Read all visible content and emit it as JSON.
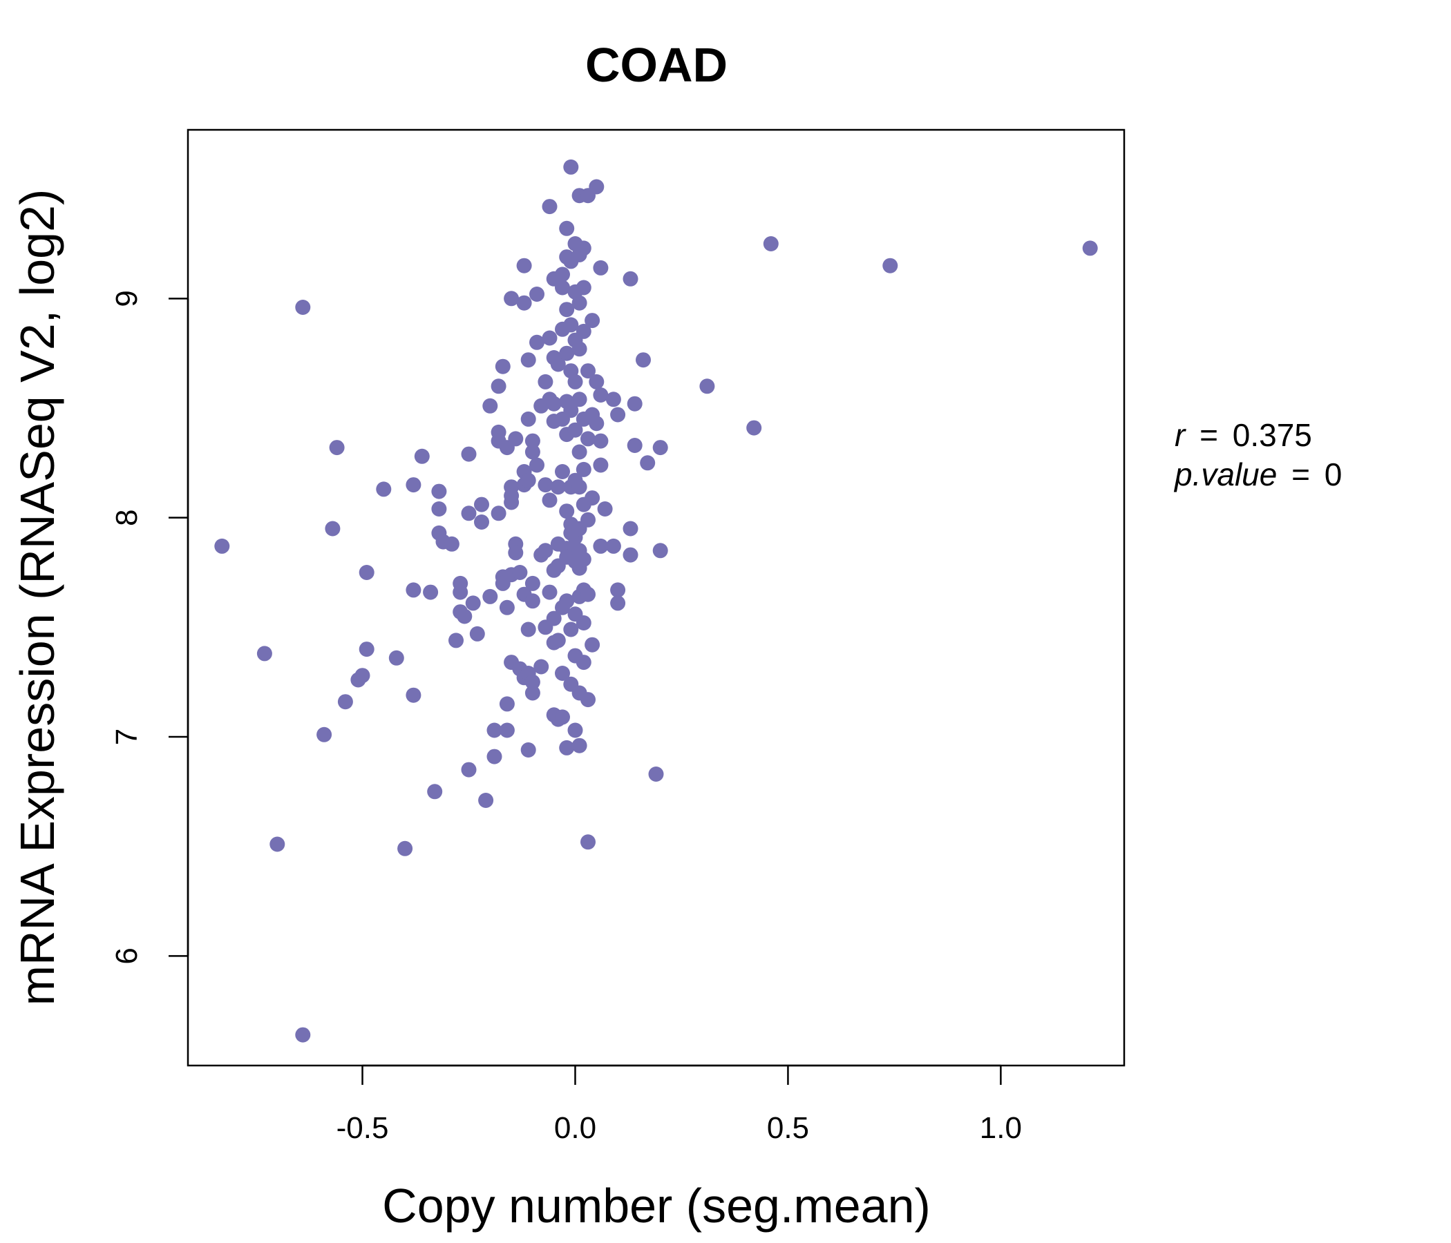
{
  "chart_data": {
    "type": "scatter",
    "title": "COAD",
    "xlabel": "Copy number (seg.mean)",
    "ylabel": "mRNA Expression (RNASeq V2, log2)",
    "xlim": [
      -0.91,
      1.29
    ],
    "ylim": [
      5.5,
      9.77
    ],
    "x_ticks": [
      -0.5,
      0.0,
      0.5,
      1.0
    ],
    "x_tick_labels": [
      "-0.5",
      "0.0",
      "0.5",
      "1.0"
    ],
    "y_ticks": [
      6,
      7,
      8,
      9
    ],
    "y_tick_labels": [
      "6",
      "7",
      "8",
      "9"
    ],
    "grid": false,
    "legend": "none",
    "point_color": "#7570B3",
    "title_color": "#7570B3",
    "annotations": [
      {
        "var": "r",
        "eq": "=",
        "value": "0.375"
      },
      {
        "var": "p.value",
        "eq": "=",
        "value": "0"
      }
    ],
    "points": [
      [
        -0.83,
        7.87
      ],
      [
        -0.73,
        7.38
      ],
      [
        -0.7,
        6.51
      ],
      [
        -0.64,
        8.96
      ],
      [
        -0.64,
        5.64
      ],
      [
        -0.59,
        7.01
      ],
      [
        -0.57,
        7.95
      ],
      [
        -0.56,
        8.32
      ],
      [
        -0.54,
        7.16
      ],
      [
        -0.51,
        7.26
      ],
      [
        -0.5,
        7.28
      ],
      [
        -0.49,
        7.75
      ],
      [
        -0.49,
        7.4
      ],
      [
        -0.45,
        8.13
      ],
      [
        -0.42,
        7.36
      ],
      [
        -0.4,
        6.49
      ],
      [
        -0.38,
        7.67
      ],
      [
        -0.38,
        7.19
      ],
      [
        -0.38,
        8.15
      ],
      [
        -0.36,
        8.28
      ],
      [
        -0.34,
        7.66
      ],
      [
        -0.33,
        6.75
      ],
      [
        -0.32,
        8.12
      ],
      [
        -0.32,
        8.04
      ],
      [
        -0.32,
        7.93
      ],
      [
        -0.31,
        7.89
      ],
      [
        -0.29,
        7.88
      ],
      [
        -0.28,
        7.44
      ],
      [
        -0.27,
        7.7
      ],
      [
        -0.27,
        7.66
      ],
      [
        -0.27,
        7.57
      ],
      [
        -0.26,
        7.55
      ],
      [
        -0.25,
        6.85
      ],
      [
        -0.25,
        8.02
      ],
      [
        -0.25,
        8.29
      ],
      [
        -0.24,
        7.61
      ],
      [
        -0.23,
        7.47
      ],
      [
        -0.22,
        7.98
      ],
      [
        -0.22,
        8.06
      ],
      [
        -0.21,
        6.71
      ],
      [
        -0.2,
        7.64
      ],
      [
        -0.2,
        8.51
      ],
      [
        -0.19,
        6.91
      ],
      [
        -0.19,
        7.03
      ],
      [
        -0.18,
        8.39
      ],
      [
        -0.18,
        8.35
      ],
      [
        -0.18,
        8.6
      ],
      [
        -0.18,
        8.02
      ],
      [
        -0.17,
        8.69
      ],
      [
        -0.17,
        7.73
      ],
      [
        -0.17,
        7.7
      ],
      [
        -0.16,
        7.59
      ],
      [
        -0.16,
        7.15
      ],
      [
        -0.16,
        7.03
      ],
      [
        -0.16,
        8.32
      ],
      [
        -0.15,
        8.07
      ],
      [
        -0.15,
        8.14
      ],
      [
        -0.15,
        8.1
      ],
      [
        -0.15,
        7.74
      ],
      [
        -0.15,
        7.34
      ],
      [
        -0.15,
        9.0
      ],
      [
        -0.14,
        8.36
      ],
      [
        -0.14,
        7.88
      ],
      [
        -0.14,
        7.84
      ],
      [
        -0.13,
        7.75
      ],
      [
        -0.13,
        7.31
      ],
      [
        -0.12,
        9.15
      ],
      [
        -0.12,
        8.98
      ],
      [
        -0.12,
        8.21
      ],
      [
        -0.12,
        7.65
      ],
      [
        -0.12,
        7.27
      ],
      [
        -0.12,
        8.15
      ],
      [
        -0.11,
        7.29
      ],
      [
        -0.11,
        8.17
      ],
      [
        -0.11,
        7.49
      ],
      [
        -0.11,
        6.94
      ],
      [
        -0.11,
        8.72
      ],
      [
        -0.11,
        8.45
      ],
      [
        -0.1,
        8.35
      ],
      [
        -0.1,
        8.3
      ],
      [
        -0.1,
        7.2
      ],
      [
        -0.1,
        7.25
      ],
      [
        -0.1,
        7.62
      ],
      [
        -0.1,
        7.7
      ],
      [
        -0.09,
        8.8
      ],
      [
        -0.09,
        9.02
      ],
      [
        -0.09,
        8.24
      ],
      [
        -0.08,
        8.51
      ],
      [
        -0.08,
        7.83
      ],
      [
        -0.08,
        7.32
      ],
      [
        -0.07,
        8.62
      ],
      [
        -0.07,
        7.85
      ],
      [
        -0.07,
        7.5
      ],
      [
        -0.07,
        8.15
      ],
      [
        -0.06,
        9.42
      ],
      [
        -0.06,
        8.82
      ],
      [
        -0.06,
        8.54
      ],
      [
        -0.06,
        7.66
      ],
      [
        -0.06,
        8.08
      ],
      [
        -0.05,
        9.09
      ],
      [
        -0.05,
        8.73
      ],
      [
        -0.05,
        8.52
      ],
      [
        -0.05,
        8.44
      ],
      [
        -0.05,
        7.76
      ],
      [
        -0.05,
        7.54
      ],
      [
        -0.05,
        7.43
      ],
      [
        -0.05,
        7.1
      ],
      [
        -0.04,
        7.08
      ],
      [
        -0.04,
        8.14
      ],
      [
        -0.04,
        7.88
      ],
      [
        -0.04,
        7.44
      ],
      [
        -0.04,
        7.78
      ],
      [
        -0.04,
        8.7
      ],
      [
        -0.03,
        9.05
      ],
      [
        -0.03,
        8.86
      ],
      [
        -0.03,
        8.21
      ],
      [
        -0.03,
        7.59
      ],
      [
        -0.03,
        7.09
      ],
      [
        -0.03,
        7.29
      ],
      [
        -0.03,
        9.11
      ],
      [
        -0.03,
        8.45
      ],
      [
        -0.02,
        9.32
      ],
      [
        -0.02,
        9.19
      ],
      [
        -0.02,
        8.95
      ],
      [
        -0.02,
        8.75
      ],
      [
        -0.02,
        8.53
      ],
      [
        -0.02,
        8.38
      ],
      [
        -0.02,
        8.03
      ],
      [
        -0.02,
        7.86
      ],
      [
        -0.02,
        7.82
      ],
      [
        -0.02,
        7.62
      ],
      [
        -0.02,
        6.95
      ],
      [
        -0.01,
        9.6
      ],
      [
        -0.01,
        9.17
      ],
      [
        -0.01,
        8.88
      ],
      [
        -0.01,
        8.67
      ],
      [
        -0.01,
        8.49
      ],
      [
        -0.01,
        8.14
      ],
      [
        -0.01,
        7.97
      ],
      [
        -0.01,
        7.93
      ],
      [
        -0.01,
        7.49
      ],
      [
        -0.01,
        7.24
      ],
      [
        0.0,
        9.25
      ],
      [
        0.0,
        9.03
      ],
      [
        0.0,
        8.81
      ],
      [
        0.0,
        8.62
      ],
      [
        0.0,
        8.4
      ],
      [
        0.0,
        8.17
      ],
      [
        0.0,
        7.91
      ],
      [
        0.0,
        7.86
      ],
      [
        0.0,
        7.8
      ],
      [
        0.0,
        7.56
      ],
      [
        0.0,
        7.37
      ],
      [
        0.0,
        7.03
      ],
      [
        0.01,
        9.47
      ],
      [
        0.01,
        9.2
      ],
      [
        0.01,
        8.98
      ],
      [
        0.01,
        8.77
      ],
      [
        0.01,
        8.54
      ],
      [
        0.01,
        8.3
      ],
      [
        0.01,
        8.14
      ],
      [
        0.01,
        7.95
      ],
      [
        0.01,
        7.85
      ],
      [
        0.01,
        7.77
      ],
      [
        0.01,
        7.64
      ],
      [
        0.01,
        7.2
      ],
      [
        0.01,
        6.96
      ],
      [
        0.02,
        9.23
      ],
      [
        0.02,
        9.05
      ],
      [
        0.02,
        8.85
      ],
      [
        0.02,
        8.45
      ],
      [
        0.02,
        8.22
      ],
      [
        0.02,
        8.06
      ],
      [
        0.02,
        7.81
      ],
      [
        0.02,
        7.67
      ],
      [
        0.02,
        7.52
      ],
      [
        0.02,
        7.34
      ],
      [
        0.03,
        9.47
      ],
      [
        0.03,
        8.67
      ],
      [
        0.03,
        8.36
      ],
      [
        0.03,
        7.99
      ],
      [
        0.03,
        7.65
      ],
      [
        0.03,
        7.17
      ],
      [
        0.03,
        6.52
      ],
      [
        0.04,
        8.9
      ],
      [
        0.04,
        8.47
      ],
      [
        0.04,
        8.09
      ],
      [
        0.04,
        7.42
      ],
      [
        0.05,
        9.51
      ],
      [
        0.05,
        8.62
      ],
      [
        0.05,
        8.43
      ],
      [
        0.06,
        9.14
      ],
      [
        0.06,
        8.56
      ],
      [
        0.06,
        8.35
      ],
      [
        0.06,
        8.24
      ],
      [
        0.06,
        7.87
      ],
      [
        0.07,
        8.04
      ],
      [
        0.09,
        8.54
      ],
      [
        0.09,
        7.87
      ],
      [
        0.1,
        8.47
      ],
      [
        0.1,
        7.67
      ],
      [
        0.1,
        7.61
      ],
      [
        0.13,
        9.09
      ],
      [
        0.13,
        7.95
      ],
      [
        0.13,
        7.83
      ],
      [
        0.14,
        8.52
      ],
      [
        0.14,
        8.33
      ],
      [
        0.16,
        8.72
      ],
      [
        0.17,
        8.25
      ],
      [
        0.19,
        6.83
      ],
      [
        0.2,
        8.32
      ],
      [
        0.2,
        7.85
      ],
      [
        0.31,
        8.6
      ],
      [
        0.42,
        8.41
      ],
      [
        0.46,
        9.25
      ],
      [
        0.74,
        9.15
      ],
      [
        1.21,
        9.23
      ]
    ]
  }
}
